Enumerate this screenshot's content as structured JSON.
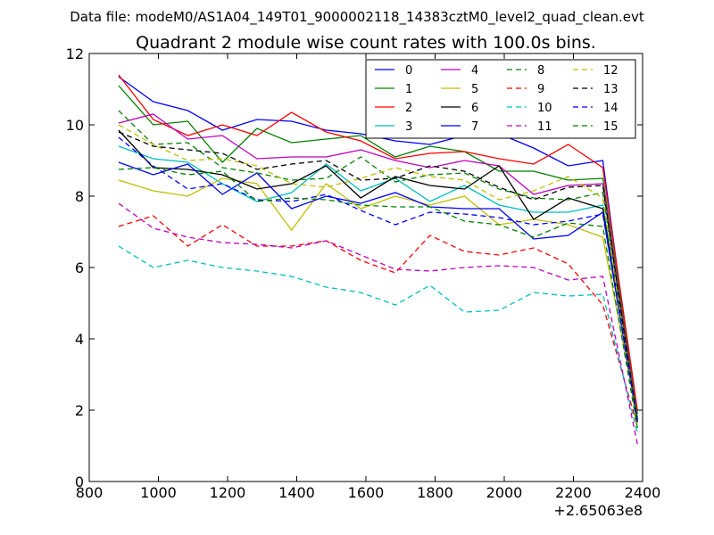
{
  "suptitle": "Data file: modeM0/AS1A04_149T01_9000002118_14383cztM0_level2_quad_clean.evt",
  "chart_data": {
    "type": "line",
    "title": "Quadrant 2 module wise count rates with 100.0s bins.",
    "xlabel": "",
    "ylabel": "",
    "xlim": [
      800,
      2400
    ],
    "ylim": [
      0,
      12
    ],
    "x_offset_label": "+2.65063e8",
    "xticks": [
      800,
      1000,
      1200,
      1400,
      1600,
      1800,
      2000,
      2200,
      2400
    ],
    "yticks": [
      0,
      2,
      4,
      6,
      8,
      10,
      12
    ],
    "grid": false,
    "legend_position": "top-right",
    "x": [
      885,
      985,
      1085,
      1185,
      1285,
      1385,
      1485,
      1585,
      1685,
      1785,
      1885,
      1985,
      2085,
      2185,
      2285,
      2385
    ],
    "series": [
      {
        "name": "0",
        "color": "#0000ff",
        "dash": "solid",
        "values": [
          11.35,
          10.65,
          10.4,
          9.85,
          10.15,
          10.1,
          9.85,
          9.75,
          9.55,
          9.45,
          9.7,
          9.75,
          9.35,
          8.85,
          9.0,
          1.7
        ]
      },
      {
        "name": "1",
        "color": "#008000",
        "dash": "solid",
        "values": [
          11.1,
          10.0,
          10.1,
          8.95,
          9.9,
          9.5,
          9.6,
          9.7,
          9.1,
          9.4,
          9.25,
          8.7,
          8.7,
          8.45,
          8.5,
          1.9
        ]
      },
      {
        "name": "2",
        "color": "#ff0000",
        "dash": "solid",
        "values": [
          11.4,
          10.15,
          9.7,
          10.0,
          9.7,
          10.35,
          9.8,
          9.55,
          9.05,
          9.2,
          9.25,
          9.05,
          8.9,
          9.45,
          8.8,
          2.0
        ]
      },
      {
        "name": "3",
        "color": "#00bfbf",
        "dash": "solid",
        "values": [
          9.4,
          9.05,
          8.95,
          8.35,
          7.85,
          8.1,
          8.9,
          8.15,
          8.5,
          7.85,
          8.3,
          7.75,
          7.55,
          7.55,
          7.75,
          1.8
        ]
      },
      {
        "name": "4",
        "color": "#bf00bf",
        "dash": "solid",
        "values": [
          10.05,
          10.3,
          9.6,
          9.7,
          9.05,
          9.1,
          9.1,
          9.3,
          9.0,
          8.8,
          9.0,
          8.85,
          8.05,
          8.3,
          8.35,
          1.7
        ]
      },
      {
        "name": "5",
        "color": "#bfbf00",
        "dash": "solid",
        "values": [
          8.45,
          8.15,
          8.0,
          8.5,
          8.35,
          7.05,
          8.35,
          7.65,
          8.0,
          7.75,
          8.0,
          7.2,
          7.35,
          7.2,
          6.85,
          1.8
        ]
      },
      {
        "name": "6",
        "color": "#000000",
        "dash": "solid",
        "values": [
          9.85,
          8.8,
          8.75,
          8.6,
          8.2,
          8.35,
          8.85,
          7.95,
          8.55,
          8.3,
          8.2,
          8.85,
          7.35,
          7.95,
          7.65,
          1.75
        ]
      },
      {
        "name": "7",
        "color": "#0000ff",
        "dash": "solid",
        "values": [
          8.95,
          8.6,
          8.9,
          8.05,
          8.65,
          7.65,
          8.0,
          7.8,
          8.1,
          7.7,
          7.65,
          7.65,
          6.8,
          6.9,
          7.55,
          1.65
        ]
      },
      {
        "name": "8",
        "color": "#008000",
        "dash": "dashed",
        "values": [
          10.4,
          9.45,
          9.5,
          8.8,
          8.65,
          8.45,
          8.5,
          9.1,
          8.4,
          8.6,
          8.65,
          8.2,
          7.95,
          7.9,
          8.1,
          1.65
        ]
      },
      {
        "name": "9",
        "color": "#ff0000",
        "dash": "dashed",
        "values": [
          7.15,
          7.45,
          6.6,
          7.2,
          6.6,
          6.6,
          6.75,
          6.2,
          5.85,
          6.9,
          6.45,
          6.35,
          6.55,
          6.1,
          4.95,
          1.55
        ]
      },
      {
        "name": "10",
        "color": "#00bfbf",
        "dash": "dashed",
        "values": [
          6.6,
          6.0,
          6.2,
          6.0,
          5.9,
          5.75,
          5.45,
          5.3,
          4.95,
          5.5,
          4.75,
          4.8,
          5.3,
          5.2,
          5.25,
          1.35
        ]
      },
      {
        "name": "11",
        "color": "#bf00bf",
        "dash": "dashed",
        "values": [
          7.8,
          7.1,
          6.85,
          6.7,
          6.65,
          6.55,
          6.75,
          6.35,
          5.95,
          5.9,
          6.0,
          6.05,
          6.0,
          5.65,
          5.75,
          1.05
        ]
      },
      {
        "name": "12",
        "color": "#bfbf00",
        "dash": "dashed",
        "values": [
          10.0,
          9.45,
          9.0,
          9.05,
          8.85,
          8.35,
          8.25,
          8.5,
          8.8,
          8.55,
          8.45,
          7.9,
          8.15,
          8.55,
          7.95,
          1.5
        ]
      },
      {
        "name": "13",
        "color": "#000000",
        "dash": "dashed",
        "values": [
          9.8,
          9.4,
          9.3,
          9.2,
          8.75,
          8.9,
          9.0,
          8.45,
          8.5,
          8.85,
          8.7,
          8.25,
          7.9,
          8.25,
          8.3,
          1.6
        ]
      },
      {
        "name": "14",
        "color": "#0000ff",
        "dash": "dashed",
        "values": [
          9.65,
          8.85,
          8.2,
          8.35,
          7.9,
          7.85,
          8.05,
          7.6,
          7.2,
          7.55,
          7.5,
          7.4,
          7.2,
          7.3,
          7.5,
          1.7
        ]
      },
      {
        "name": "15",
        "color": "#008000",
        "dash": "dashed",
        "values": [
          8.75,
          8.8,
          8.6,
          8.7,
          7.85,
          7.95,
          7.9,
          7.75,
          7.7,
          7.7,
          7.3,
          7.2,
          6.85,
          7.25,
          7.15,
          1.5
        ]
      }
    ]
  }
}
